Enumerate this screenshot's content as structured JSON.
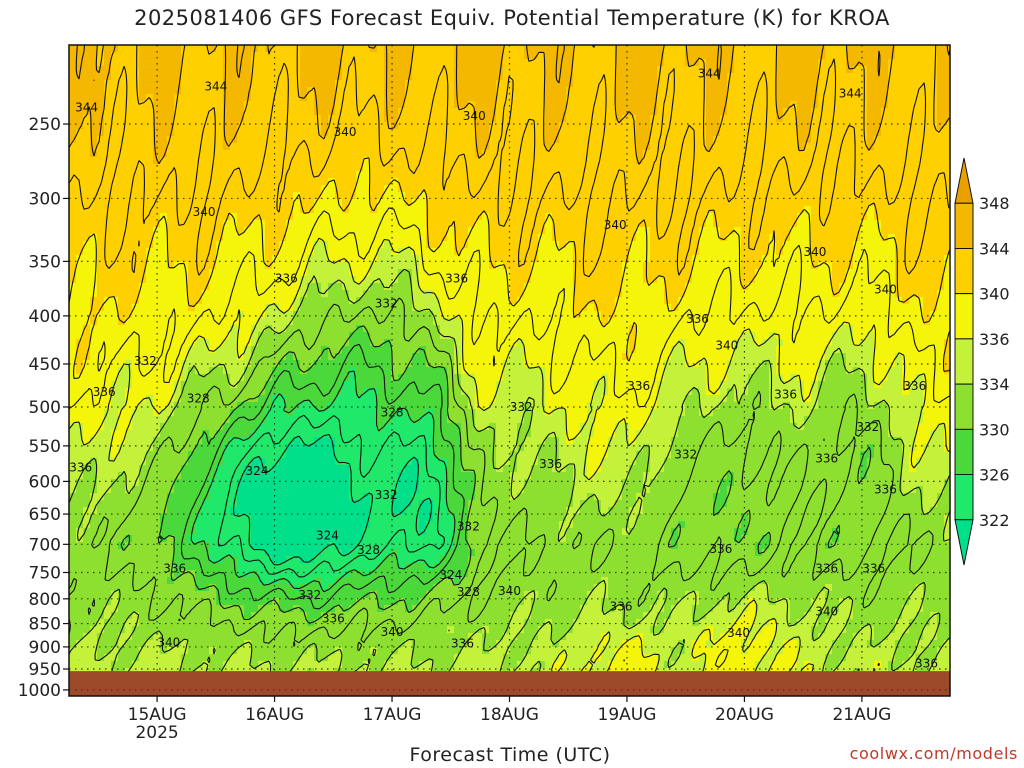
{
  "title": "2025081406 GFS Forecast Equiv. Potential Temperature (K) for KROA",
  "xlabel": "Forecast Time (UTC)",
  "credit": "coolwx.com/models",
  "chart_data": {
    "type": "heatmap",
    "title": "2025081406 GFS Forecast Equiv. Potential Temperature (K) for KROA",
    "xlabel": "Forecast Time (UTC)",
    "ylabel": "",
    "y_scale": "log",
    "y_inverted": true,
    "ylim": [
      1015,
      206
    ],
    "y_ticks": [
      250,
      300,
      350,
      400,
      450,
      500,
      550,
      600,
      650,
      700,
      750,
      800,
      850,
      900,
      950,
      1000
    ],
    "x_ticks": [
      {
        "day": 15,
        "label": "15AUG",
        "sublabel": "2025"
      },
      {
        "day": 16,
        "label": "16AUG",
        "sublabel": ""
      },
      {
        "day": 17,
        "label": "17AUG",
        "sublabel": ""
      },
      {
        "day": 18,
        "label": "18AUG",
        "sublabel": ""
      },
      {
        "day": 19,
        "label": "19AUG",
        "sublabel": ""
      },
      {
        "day": 20,
        "label": "20AUG",
        "sublabel": ""
      },
      {
        "day": 21,
        "label": "21AUG",
        "sublabel": ""
      }
    ],
    "xlim_days": [
      14.25,
      21.75
    ],
    "grid": true,
    "ground_level": 955,
    "colorbar": {
      "levels": [
        322,
        326,
        330,
        334,
        336,
        340,
        344,
        348
      ],
      "colors": [
        "#00e08a",
        "#20e86a",
        "#4ad83a",
        "#8ee030",
        "#c4f23a",
        "#f5f50a",
        "#ffd000",
        "#f5b800",
        "#eaa000"
      ]
    },
    "colors": {
      "ground": "#9c4a2a",
      "c322": "#00e08a",
      "c326": "#20e86a",
      "c330": "#4ad83a",
      "c334": "#8ee030",
      "c336": "#c4f23a",
      "c340": "#f5f50a",
      "c344": "#ffd000",
      "c348": "#f5b800"
    },
    "contour_labels": [
      {
        "text": "344",
        "day": 14.4,
        "p": 240
      },
      {
        "text": "344",
        "day": 15.5,
        "p": 228
      },
      {
        "text": "340",
        "day": 16.6,
        "p": 255
      },
      {
        "text": "340",
        "day": 17.7,
        "p": 245
      },
      {
        "text": "344",
        "day": 19.7,
        "p": 221
      },
      {
        "text": "344",
        "day": 20.9,
        "p": 232
      },
      {
        "text": "340",
        "day": 15.4,
        "p": 310
      },
      {
        "text": "340",
        "day": 18.9,
        "p": 320
      },
      {
        "text": "340",
        "day": 20.6,
        "p": 342
      },
      {
        "text": "340",
        "day": 21.2,
        "p": 375
      },
      {
        "text": "336",
        "day": 16.1,
        "p": 365
      },
      {
        "text": "336",
        "day": 17.55,
        "p": 365
      },
      {
        "text": "336",
        "day": 19.6,
        "p": 403
      },
      {
        "text": "340",
        "day": 19.85,
        "p": 430
      },
      {
        "text": "332",
        "day": 16.95,
        "p": 388
      },
      {
        "text": "332",
        "day": 14.9,
        "p": 447
      },
      {
        "text": "336",
        "day": 14.55,
        "p": 482
      },
      {
        "text": "328",
        "day": 15.35,
        "p": 490
      },
      {
        "text": "328",
        "day": 17.0,
        "p": 507
      },
      {
        "text": "332",
        "day": 18.1,
        "p": 500
      },
      {
        "text": "336",
        "day": 19.1,
        "p": 475
      },
      {
        "text": "336",
        "day": 20.35,
        "p": 485
      },
      {
        "text": "336",
        "day": 21.45,
        "p": 475
      },
      {
        "text": "332",
        "day": 21.05,
        "p": 525
      },
      {
        "text": "336",
        "day": 14.35,
        "p": 580
      },
      {
        "text": "324",
        "day": 15.85,
        "p": 585
      },
      {
        "text": "332",
        "day": 19.5,
        "p": 562
      },
      {
        "text": "336",
        "day": 18.35,
        "p": 575
      },
      {
        "text": "336",
        "day": 20.7,
        "p": 567
      },
      {
        "text": "336",
        "day": 21.2,
        "p": 612
      },
      {
        "text": "332",
        "day": 16.95,
        "p": 620
      },
      {
        "text": "324",
        "day": 16.45,
        "p": 685
      },
      {
        "text": "332",
        "day": 17.65,
        "p": 670
      },
      {
        "text": "328",
        "day": 16.8,
        "p": 710
      },
      {
        "text": "336",
        "day": 19.8,
        "p": 708
      },
      {
        "text": "324",
        "day": 17.5,
        "p": 755
      },
      {
        "text": "336",
        "day": 15.15,
        "p": 743
      },
      {
        "text": "336",
        "day": 20.7,
        "p": 743
      },
      {
        "text": "336",
        "day": 21.1,
        "p": 743
      },
      {
        "text": "328",
        "day": 17.65,
        "p": 787
      },
      {
        "text": "332",
        "day": 16.3,
        "p": 793
      },
      {
        "text": "340",
        "day": 18.0,
        "p": 785
      },
      {
        "text": "336",
        "day": 18.95,
        "p": 815
      },
      {
        "text": "336",
        "day": 16.5,
        "p": 840
      },
      {
        "text": "340",
        "day": 20.7,
        "p": 825
      },
      {
        "text": "340",
        "day": 17.0,
        "p": 868
      },
      {
        "text": "340",
        "day": 19.95,
        "p": 870
      },
      {
        "text": "340",
        "day": 15.1,
        "p": 890
      },
      {
        "text": "336",
        "day": 17.6,
        "p": 893
      },
      {
        "text": "336",
        "day": 21.55,
        "p": 937
      }
    ]
  }
}
